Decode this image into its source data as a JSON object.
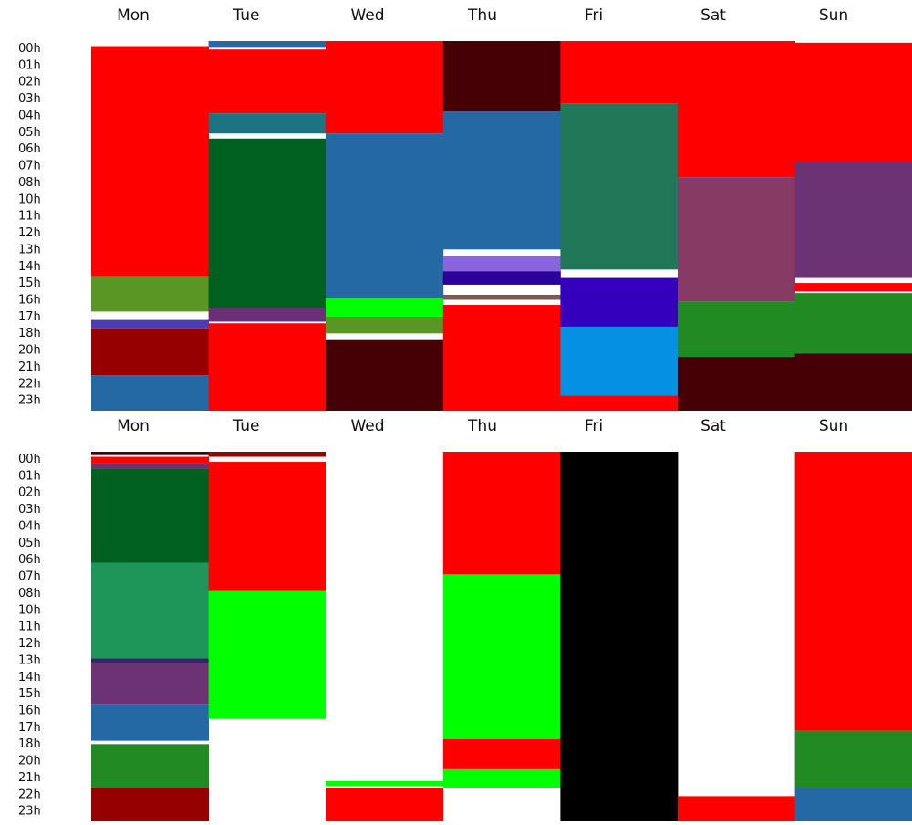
{
  "chart_data": [
    {
      "type": "heatmap",
      "title": "",
      "days": [
        "Mon",
        "Tue",
        "Wed",
        "Thu",
        "Fri",
        "Sat",
        "Sun"
      ],
      "hour_labels": [
        "00h",
        "01h",
        "02h",
        "03h",
        "04h",
        "05h",
        "06h",
        "07h",
        "08h",
        "10h",
        "11h",
        "12h",
        "13h",
        "14h",
        "15h",
        "16h",
        "17h",
        "18h",
        "20h",
        "21h",
        "22h",
        "23h"
      ],
      "hours_range": [
        0,
        24
      ],
      "blocks": [
        [
          {
            "start": 0.3,
            "end": 14.0,
            "color": "#ff0000"
          },
          {
            "start": 14.0,
            "end": 16.1,
            "color": "#5a9623"
          },
          {
            "start": 16.6,
            "end": 17.1,
            "color": "#4a3cb4"
          },
          {
            "start": 17.1,
            "end": 19.9,
            "color": "#960000"
          },
          {
            "start": 19.9,
            "end": 22.0,
            "color": "#2468a4"
          }
        ],
        [
          {
            "start": 0.0,
            "end": 0.4,
            "color": "#2468a4"
          },
          {
            "start": 0.5,
            "end": 4.3,
            "color": "#ff0000"
          },
          {
            "start": 4.3,
            "end": 5.5,
            "color": "#1e7382"
          },
          {
            "start": 5.8,
            "end": 15.9,
            "color": "#006020"
          },
          {
            "start": 15.9,
            "end": 16.7,
            "color": "#6b2f78"
          },
          {
            "start": 16.8,
            "end": 22.0,
            "color": "#ff0000"
          }
        ],
        [
          {
            "start": 0.0,
            "end": 5.5,
            "color": "#ff0000"
          },
          {
            "start": 5.5,
            "end": 15.3,
            "color": "#2468a4"
          },
          {
            "start": 15.3,
            "end": 16.4,
            "color": "#00ff00"
          },
          {
            "start": 16.4,
            "end": 17.4,
            "color": "#5a9623"
          },
          {
            "start": 17.8,
            "end": 22.0,
            "color": "#460005"
          }
        ],
        [
          {
            "start": 0.0,
            "end": 4.2,
            "color": "#460005"
          },
          {
            "start": 4.2,
            "end": 12.4,
            "color": "#2468a4"
          },
          {
            "start": 12.8,
            "end": 13.7,
            "color": "#8a64dc"
          },
          {
            "start": 13.7,
            "end": 14.5,
            "color": "#2c009a"
          },
          {
            "start": 15.1,
            "end": 15.4,
            "color": "#7a5a50"
          },
          {
            "start": 15.7,
            "end": 22.0,
            "color": "#ff0000"
          }
        ],
        [
          {
            "start": 0.0,
            "end": 3.7,
            "color": "#ff0000"
          },
          {
            "start": 3.7,
            "end": 13.6,
            "color": "#207858"
          },
          {
            "start": 14.1,
            "end": 17.0,
            "color": "#3400bb"
          },
          {
            "start": 17.0,
            "end": 21.1,
            "color": "#0491e4"
          },
          {
            "start": 21.1,
            "end": 22.0,
            "color": "#ff0000"
          }
        ],
        [
          {
            "start": 0.0,
            "end": 8.1,
            "color": "#ff0000"
          },
          {
            "start": 8.1,
            "end": 15.5,
            "color": "#863a64"
          },
          {
            "start": 15.5,
            "end": 18.8,
            "color": "#228a22"
          },
          {
            "start": 18.8,
            "end": 22.0,
            "color": "#460005"
          }
        ],
        [
          {
            "start": 0.1,
            "end": 7.2,
            "color": "#ff0000"
          },
          {
            "start": 7.2,
            "end": 14.1,
            "color": "#6b3373"
          },
          {
            "start": 14.4,
            "end": 14.9,
            "color": "#ff0000"
          },
          {
            "start": 15.0,
            "end": 18.6,
            "color": "#228a22"
          },
          {
            "start": 18.6,
            "end": 22.0,
            "color": "#460005"
          }
        ]
      ]
    },
    {
      "type": "heatmap",
      "title": "",
      "days": [
        "Mon",
        "Tue",
        "Wed",
        "Thu",
        "Fri",
        "Sat",
        "Sun"
      ],
      "hour_labels": [
        "00h",
        "01h",
        "02h",
        "03h",
        "04h",
        "05h",
        "06h",
        "07h",
        "08h",
        "10h",
        "11h",
        "12h",
        "13h",
        "14h",
        "15h",
        "16h",
        "17h",
        "18h",
        "20h",
        "21h",
        "22h",
        "23h"
      ],
      "hours_range": [
        0,
        24
      ],
      "blocks": [
        [
          {
            "start": 0.0,
            "end": 0.2,
            "color": "#460005"
          },
          {
            "start": 0.3,
            "end": 0.7,
            "color": "#ff0000"
          },
          {
            "start": 0.7,
            "end": 1.0,
            "color": "#6b3373"
          },
          {
            "start": 1.0,
            "end": 6.6,
            "color": "#006020"
          },
          {
            "start": 6.6,
            "end": 12.3,
            "color": "#1e965a"
          },
          {
            "start": 12.3,
            "end": 12.6,
            "color": "#3a2468"
          },
          {
            "start": 12.6,
            "end": 15.0,
            "color": "#6b3373"
          },
          {
            "start": 15.0,
            "end": 17.2,
            "color": "#2468a4"
          },
          {
            "start": 17.4,
            "end": 20.0,
            "color": "#228a22"
          },
          {
            "start": 20.0,
            "end": 22.0,
            "color": "#960000"
          }
        ],
        [
          {
            "start": 0.0,
            "end": 0.3,
            "color": "#960000"
          },
          {
            "start": 0.6,
            "end": 8.3,
            "color": "#ff0000"
          },
          {
            "start": 8.3,
            "end": 15.9,
            "color": "#00ff00"
          }
        ],
        [
          {
            "start": 19.6,
            "end": 19.9,
            "color": "#00ff00"
          },
          {
            "start": 20.0,
            "end": 22.0,
            "color": "#ff0000"
          }
        ],
        [
          {
            "start": 0.0,
            "end": 7.3,
            "color": "#ff0000"
          },
          {
            "start": 7.3,
            "end": 17.1,
            "color": "#00ff00"
          },
          {
            "start": 17.1,
            "end": 18.9,
            "color": "#ff0000"
          },
          {
            "start": 18.9,
            "end": 20.0,
            "color": "#00ff00"
          }
        ],
        [
          {
            "start": 0.0,
            "end": 22.0,
            "color": "#000000"
          }
        ],
        [
          {
            "start": 20.5,
            "end": 22.0,
            "color": "#ff0000"
          }
        ],
        [
          {
            "start": 0.0,
            "end": 16.6,
            "color": "#ff0000"
          },
          {
            "start": 16.6,
            "end": 20.0,
            "color": "#228a22"
          },
          {
            "start": 20.0,
            "end": 22.0,
            "color": "#2468a4"
          }
        ]
      ]
    }
  ]
}
